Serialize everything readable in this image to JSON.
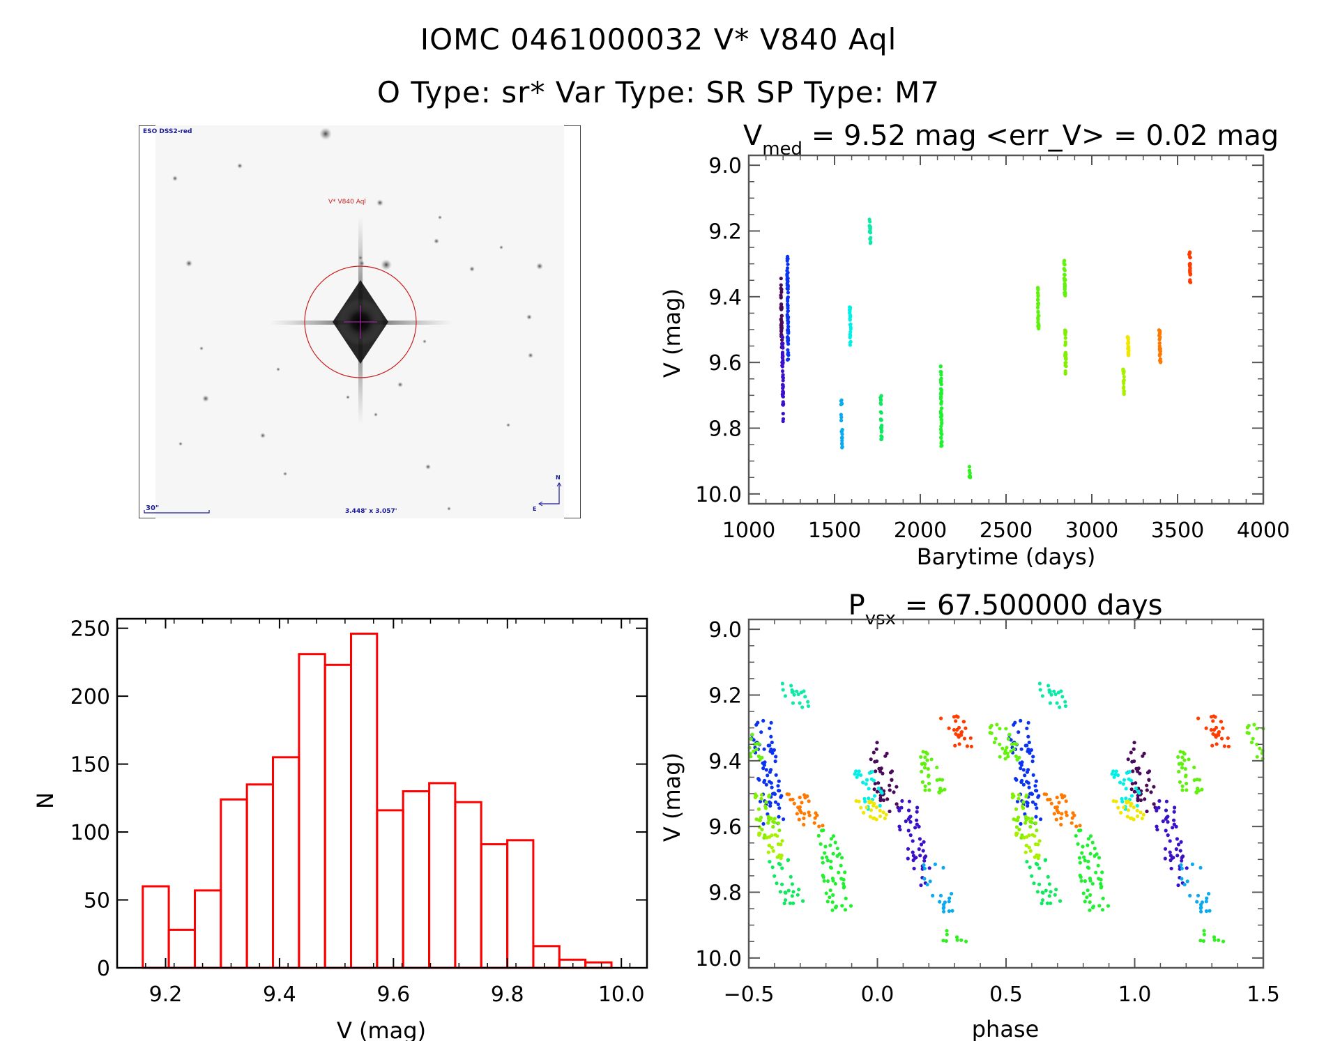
{
  "header": {
    "line1": "IOMC 0461000032    V* V840 Aql",
    "line2": "O Type: sr*  Var Type: SR  SP Type: M7"
  },
  "finder_chart": {
    "survey_label": "ESO DSS2-red",
    "target_label": "V* V840 Aql",
    "scale_bar_label": "30\"",
    "field_size_label": "3.448' x 3.057'",
    "compass_north": "N",
    "compass_east": "E",
    "colors": {
      "annotation": "#1a1a9a",
      "target": "#c81e1e",
      "circle": "#c81e1e",
      "crosshair": "#a020a0"
    }
  },
  "chart_data": [
    {
      "id": "lightcurve",
      "type": "scatter",
      "title_main": "V",
      "title_sub": "med",
      "title_rest": " = 9.52 mag <err_V> = 0.02 mag",
      "xlabel": "Barytime (days)",
      "ylabel": "V (mag)",
      "xlim": [
        1000,
        4000
      ],
      "ylim": [
        10.03,
        8.97
      ],
      "xticks": [
        1000,
        1500,
        2000,
        2500,
        3000,
        3500,
        4000
      ],
      "xtick_labels": [
        "1000",
        "1500",
        "2000",
        "2500",
        "3000",
        "3500",
        "4000"
      ],
      "yticks": [
        9.0,
        9.2,
        9.4,
        9.6,
        9.8,
        10.0
      ],
      "ytick_labels": [
        "9.0",
        "9.2",
        "9.4",
        "9.6",
        "9.8",
        "10.0"
      ],
      "grid": false,
      "segments": [
        {
          "t": 1188,
          "v0": 9.34,
          "v1": 9.56,
          "n": 40,
          "color": "#4a0a5a"
        },
        {
          "t": 1196,
          "v0": 9.52,
          "v1": 9.78,
          "n": 45,
          "color": "#3a10c8"
        },
        {
          "t": 1225,
          "v0": 9.27,
          "v1": 9.6,
          "n": 70,
          "color": "#0a32f0"
        },
        {
          "t": 1540,
          "v0": 9.71,
          "v1": 9.86,
          "n": 20,
          "color": "#0aaaf0"
        },
        {
          "t": 1590,
          "v0": 9.43,
          "v1": 9.56,
          "n": 25,
          "color": "#00f0e6"
        },
        {
          "t": 1705,
          "v0": 9.16,
          "v1": 9.24,
          "n": 18,
          "color": "#10e8a8"
        },
        {
          "t": 1770,
          "v0": 9.68,
          "v1": 9.84,
          "n": 25,
          "color": "#10e860"
        },
        {
          "t": 2120,
          "v0": 9.61,
          "v1": 9.87,
          "n": 50,
          "color": "#20f030"
        },
        {
          "t": 2285,
          "v0": 9.91,
          "v1": 9.95,
          "n": 8,
          "color": "#30f020"
        },
        {
          "t": 2685,
          "v0": 9.36,
          "v1": 9.5,
          "n": 30,
          "color": "#60f010"
        },
        {
          "t": 2840,
          "v0": 9.29,
          "v1": 9.4,
          "n": 28,
          "color": "#66f010"
        },
        {
          "t": 2845,
          "v0": 9.5,
          "v1": 9.65,
          "n": 30,
          "color": "#80f000"
        },
        {
          "t": 3185,
          "v0": 9.62,
          "v1": 9.7,
          "n": 20,
          "color": "#a8f000"
        },
        {
          "t": 3210,
          "v0": 9.51,
          "v1": 9.58,
          "n": 22,
          "color": "#f0e600"
        },
        {
          "t": 3395,
          "v0": 9.5,
          "v1": 9.6,
          "n": 28,
          "color": "#ff7800"
        },
        {
          "t": 3570,
          "v0": 9.26,
          "v1": 9.36,
          "n": 25,
          "color": "#ff3c00"
        }
      ]
    },
    {
      "id": "histogram",
      "type": "bar",
      "xlabel": "V (mag)",
      "ylabel": "N",
      "xlim": [
        9.115,
        10.045
      ],
      "ylim": [
        0,
        257
      ],
      "xticks": [
        9.2,
        9.4,
        9.6,
        9.8,
        10.0
      ],
      "xtick_labels": [
        "9.2",
        "9.4",
        "9.6",
        "9.8",
        "10.0"
      ],
      "yticks": [
        0,
        50,
        100,
        150,
        200,
        250
      ],
      "ytick_labels": [
        "0",
        "50",
        "100",
        "150",
        "200",
        "250"
      ],
      "bin_start": 9.16,
      "bin_width": 0.0457,
      "values": [
        60,
        28,
        57,
        124,
        135,
        155,
        231,
        223,
        246,
        116,
        130,
        136,
        122,
        91,
        94,
        16,
        6,
        4
      ],
      "color": "#ff0000",
      "grid": false
    },
    {
      "id": "phased",
      "type": "scatter",
      "title_main": "P",
      "title_sub": "vsx",
      "title_rest": " = 67.500000 days",
      "period_days": 67.5,
      "xlabel": "phase",
      "ylabel": "V (mag)",
      "xlim": [
        -0.5,
        1.5
      ],
      "ylim": [
        10.03,
        8.97
      ],
      "xticks": [
        -0.5,
        0.0,
        0.5,
        1.0,
        1.5
      ],
      "xtick_labels": [
        "−0.5",
        "0.0",
        "0.5",
        "1.0",
        "1.5"
      ],
      "yticks": [
        9.0,
        9.2,
        9.4,
        9.6,
        9.8,
        10.0
      ],
      "ytick_labels": [
        "9.0",
        "9.2",
        "9.4",
        "9.6",
        "9.8",
        "10.0"
      ],
      "grid": false
    }
  ]
}
